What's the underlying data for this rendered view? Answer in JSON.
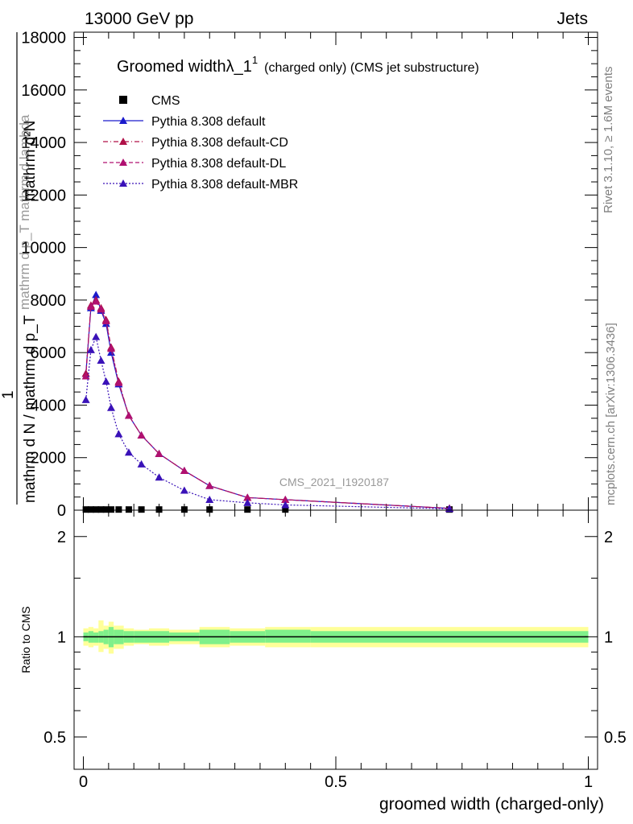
{
  "header": {
    "left": "13000 GeV pp",
    "right": "Jets"
  },
  "side_text": {
    "rivet": "Rivet 3.1.10, ≥ 1.6M events",
    "mcplots": "mcplots.cern.ch [arXiv:1306.3436]"
  },
  "watermark": "CMS_2021_I1920187",
  "chart_data": [
    {
      "type": "line",
      "title": "Groomed widthλ_1",
      "title_sup": "1",
      "title_suffix": "(charged only) (CMS jet substructure)",
      "ylabel_numerator": "mathrm d²N",
      "ylabel_numerator_2": "mathrm d p_T mathrm d lambda",
      "ylabel_prefactor": "1",
      "ylabel_denominator": "mathrm d N / mathrm d p_T",
      "xlim": [
        0,
        1
      ],
      "ylim": [
        0,
        18200
      ],
      "yticks": [
        0,
        2000,
        4000,
        6000,
        8000,
        10000,
        12000,
        14000,
        16000,
        18000
      ],
      "ytick_labels": [
        "0",
        "2000",
        "4000",
        "6000",
        "8000",
        "10000",
        "12000",
        "14000",
        "16000",
        "18000"
      ],
      "x": [
        0.005,
        0.015,
        0.025,
        0.035,
        0.045,
        0.055,
        0.07,
        0.09,
        0.115,
        0.15,
        0.2,
        0.25,
        0.325,
        0.4,
        0.725
      ],
      "series": [
        {
          "name": "CMS",
          "color": "#000000",
          "marker": "square",
          "values": [
            25,
            25,
            25,
            25,
            25,
            25,
            25,
            25,
            25,
            25,
            25,
            25,
            25,
            25,
            25
          ]
        },
        {
          "name": "Pythia 8.308 default",
          "color": "#1a1acc",
          "line": "solid",
          "marker": "triangle",
          "values": [
            5200,
            7700,
            8200,
            7600,
            7100,
            6000,
            4800,
            3600,
            2850,
            2150,
            1500,
            930,
            480,
            400,
            70
          ]
        },
        {
          "name": "Pythia 8.308 default-CD",
          "color": "#b01048",
          "line": "dashdot",
          "marker": "triangle",
          "values": [
            5200,
            7800,
            8000,
            7700,
            7250,
            6200,
            4900,
            3600,
            2850,
            2150,
            1500,
            930,
            480,
            400,
            70
          ]
        },
        {
          "name": "Pythia 8.308 default-DL",
          "color": "#b01070",
          "line": "dashed",
          "marker": "triangle",
          "values": [
            5100,
            7750,
            7950,
            7650,
            7200,
            6150,
            4850,
            3600,
            2850,
            2150,
            1500,
            930,
            480,
            400,
            70
          ]
        },
        {
          "name": "Pythia 8.308 default-MBR",
          "color": "#3a12b8",
          "line": "dotted",
          "marker": "triangle",
          "values": [
            4200,
            6100,
            6600,
            5700,
            4900,
            3900,
            2900,
            2200,
            1750,
            1250,
            750,
            400,
            280,
            200,
            50
          ]
        }
      ]
    },
    {
      "type": "area",
      "ylabel": "Ratio to CMS",
      "xlabel": "groomed width (charged-only)",
      "xlim": [
        0,
        1
      ],
      "xticks": [
        0,
        0.5,
        1
      ],
      "xtick_labels": [
        "0",
        "0.5",
        "1"
      ],
      "yscale": "log",
      "ylim": [
        0.4,
        2.4
      ],
      "yticks": [
        0.5,
        1,
        2
      ],
      "ytick_labels": [
        "0.5",
        "1",
        "2"
      ],
      "bins": [
        0,
        0.01,
        0.02,
        0.03,
        0.04,
        0.05,
        0.06,
        0.08,
        0.1,
        0.13,
        0.17,
        0.23,
        0.29,
        0.36,
        0.45,
        1
      ],
      "band_inner": [
        [
          0.97,
          1.03
        ],
        [
          0.96,
          1.04
        ],
        [
          0.96,
          1.03
        ],
        [
          0.96,
          1.04
        ],
        [
          0.95,
          1.05
        ],
        [
          0.93,
          1.07
        ],
        [
          0.95,
          1.05
        ],
        [
          0.96,
          1.04
        ],
        [
          0.96,
          1.04
        ],
        [
          0.96,
          1.04
        ],
        [
          0.97,
          1.03
        ],
        [
          0.95,
          1.05
        ],
        [
          0.96,
          1.04
        ],
        [
          0.96,
          1.05
        ],
        [
          0.96,
          1.04
        ]
      ],
      "band_outer": [
        [
          0.94,
          1.06
        ],
        [
          0.93,
          1.07
        ],
        [
          0.94,
          1.06
        ],
        [
          0.9,
          1.12
        ],
        [
          0.92,
          1.08
        ],
        [
          0.89,
          1.11
        ],
        [
          0.92,
          1.08
        ],
        [
          0.94,
          1.06
        ],
        [
          0.95,
          1.05
        ],
        [
          0.94,
          1.06
        ],
        [
          0.95,
          1.05
        ],
        [
          0.93,
          1.07
        ],
        [
          0.94,
          1.06
        ],
        [
          0.93,
          1.07
        ],
        [
          0.93,
          1.07
        ]
      ],
      "band_colors": {
        "inner": "#7ff08a",
        "outer": "#ffff99"
      },
      "reference_value": 1
    }
  ]
}
